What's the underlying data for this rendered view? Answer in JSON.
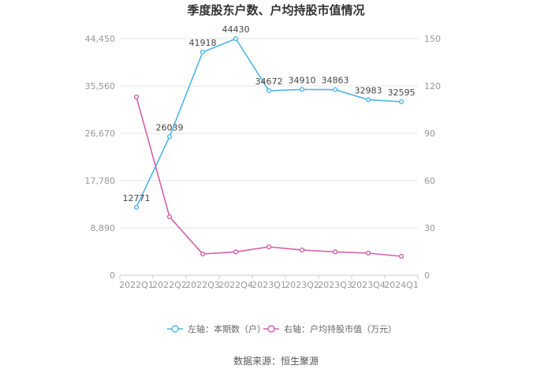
{
  "chart_data": {
    "type": "line",
    "title": "季度股东户数、户均持股市值情况",
    "categories": [
      "2022Q1",
      "2022Q2",
      "2022Q3",
      "2022Q4",
      "2023Q1",
      "2023Q2",
      "2023Q3",
      "2023Q4",
      "2024Q1"
    ],
    "series": [
      {
        "name": "左轴：本期数（户）",
        "axis": "left",
        "color": "#4db6e8",
        "values": [
          12771,
          26039,
          41918,
          44430,
          34672,
          34910,
          34863,
          32983,
          32595
        ],
        "labels": [
          "12771",
          "26039",
          "41918",
          "44430",
          "34672",
          "34910",
          "34863",
          "32983",
          "32595"
        ]
      },
      {
        "name": "右轴：户均持股市值（万元）",
        "axis": "right",
        "color": "#d45fae",
        "values": [
          113,
          37,
          13.5,
          14.8,
          18,
          16,
          14.8,
          14,
          12
        ]
      }
    ],
    "left_axis": {
      "ylim": [
        0,
        44450
      ],
      "ticks": [
        "0",
        "8,890",
        "17,780",
        "26,670",
        "35,560",
        "44,450"
      ]
    },
    "right_axis": {
      "ylim": [
        0,
        150
      ],
      "ticks": [
        "0",
        "30",
        "60",
        "90",
        "120",
        "150"
      ]
    },
    "grid": true,
    "legend_position": "bottom"
  },
  "source": "数据来源：恒生聚源"
}
